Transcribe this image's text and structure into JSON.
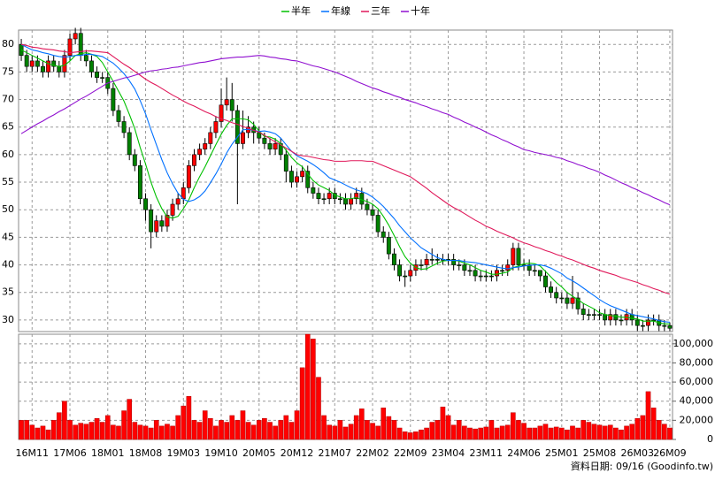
{
  "chart_data": {
    "type": "candlestick",
    "categories": [
      null,
      null,
      "16M11",
      null,
      null,
      null,
      null,
      null,
      null,
      "17M06",
      null,
      null,
      null,
      null,
      null,
      null,
      "18M01",
      null,
      null,
      null,
      null,
      null,
      null,
      "18M08",
      null,
      null,
      null,
      null,
      null,
      null,
      "19M03",
      null,
      null,
      null,
      null,
      null,
      null,
      "19M10",
      null,
      null,
      null,
      null,
      null,
      null,
      "20M05",
      null,
      null,
      null,
      null,
      null,
      null,
      "20M12",
      null,
      null,
      null,
      null,
      null,
      null,
      "21M07",
      null,
      null,
      null,
      null,
      null,
      null,
      "22M02",
      null,
      null,
      null,
      null,
      null,
      null,
      "22M09",
      null,
      null,
      null,
      null,
      null,
      null,
      "23M04",
      null,
      null,
      null,
      null,
      null,
      null,
      "23M11",
      null,
      null,
      null,
      null,
      null,
      null,
      "24M06",
      null,
      null,
      null,
      null,
      null,
      null,
      "25M01",
      null,
      null,
      null,
      null,
      null,
      null,
      "25M08",
      null,
      null,
      null,
      null,
      null,
      null,
      "26M03",
      null,
      null,
      null,
      null,
      null,
      "26M09"
    ],
    "open": [
      80,
      78,
      76,
      77,
      76,
      75,
      77,
      76,
      75,
      78,
      81,
      82,
      78,
      77,
      75,
      74,
      74,
      72,
      68,
      66,
      64,
      60,
      58,
      52,
      50,
      46,
      48,
      47,
      49,
      51,
      52,
      54,
      58,
      60,
      61,
      62,
      64,
      66,
      69,
      70,
      68,
      62,
      64,
      65,
      64,
      63,
      62,
      61,
      62,
      60,
      57,
      55,
      56,
      57,
      54,
      53,
      52,
      52,
      53,
      52,
      52,
      51,
      52,
      53,
      51,
      50,
      49,
      46,
      45,
      42,
      40,
      38,
      38,
      39,
      40,
      40,
      41,
      41,
      41,
      41,
      41,
      40,
      40,
      39,
      39,
      38,
      38,
      38,
      38,
      39,
      39,
      40,
      43,
      40,
      40,
      39,
      39,
      38,
      36,
      35,
      34,
      34,
      33,
      34,
      32,
      31,
      31,
      31,
      31,
      30,
      31,
      30,
      30,
      31,
      30,
      29,
      29,
      30,
      30,
      29,
      29
    ],
    "high": [
      81,
      79,
      78,
      78,
      77,
      78,
      78,
      77,
      79,
      82,
      83,
      83,
      79,
      78,
      76,
      75,
      75,
      73,
      69,
      67,
      65,
      61,
      59,
      53,
      51,
      49,
      49,
      50,
      52,
      53,
      55,
      59,
      61,
      62,
      63,
      65,
      67,
      72,
      74,
      73,
      69,
      68,
      67,
      66,
      65,
      64,
      63,
      63,
      63,
      61,
      58,
      57,
      58,
      58,
      55,
      54,
      53,
      54,
      54,
      53,
      53,
      53,
      54,
      54,
      52,
      51,
      50,
      47,
      46,
      43,
      41,
      39,
      40,
      41,
      41,
      42,
      43,
      42,
      42,
      42,
      42,
      41,
      41,
      40,
      40,
      39,
      39,
      39,
      40,
      40,
      41,
      44,
      44,
      41,
      41,
      40,
      39,
      39,
      37,
      36,
      35,
      35,
      38,
      35,
      33,
      32,
      32,
      32,
      32,
      32,
      32,
      31,
      32,
      32,
      31,
      30,
      31,
      31,
      31,
      30,
      29.5
    ],
    "low": [
      77,
      75,
      75,
      75,
      74,
      74,
      75,
      74,
      74,
      77,
      80,
      77,
      76,
      74,
      73,
      73,
      71,
      67,
      65,
      63,
      59,
      57,
      51,
      48,
      43,
      45,
      46,
      46,
      48,
      50,
      51,
      53,
      57,
      59,
      60,
      61,
      63,
      65,
      68,
      66,
      51,
      61,
      63,
      62,
      62,
      61,
      60,
      60,
      59,
      55,
      54,
      54,
      55,
      53,
      52,
      51,
      51,
      51,
      51,
      51,
      50,
      50,
      51,
      50,
      49,
      48,
      45,
      44,
      41,
      39,
      37,
      36,
      37,
      38,
      39,
      39,
      40,
      40,
      40,
      40,
      39,
      39,
      38,
      38,
      37,
      37,
      37,
      37,
      37,
      38,
      38,
      39,
      39,
      39,
      38,
      38,
      37,
      35,
      34,
      33,
      33,
      32,
      32,
      31,
      30,
      30,
      30,
      30,
      29,
      29,
      29,
      29,
      29,
      29,
      28,
      28,
      28,
      29,
      28,
      28,
      28
    ],
    "close": [
      78,
      76,
      77,
      76,
      75,
      77,
      76,
      75,
      78,
      81,
      82,
      78,
      77,
      75,
      74,
      74,
      72,
      68,
      66,
      64,
      60,
      58,
      52,
      50,
      46,
      48,
      47,
      49,
      51,
      52,
      54,
      58,
      60,
      61,
      62,
      64,
      66,
      69,
      70,
      68,
      62,
      64,
      65,
      64,
      63,
      62,
      61,
      62,
      60,
      57,
      55,
      56,
      57,
      54,
      53,
      52,
      52,
      53,
      52,
      52,
      51,
      52,
      53,
      51,
      50,
      49,
      46,
      45,
      42,
      40,
      38,
      38,
      39,
      40,
      40,
      41,
      41,
      41,
      41,
      41,
      40,
      40,
      39,
      39,
      38,
      38,
      38,
      38,
      39,
      39,
      40,
      43,
      40,
      40,
      39,
      39,
      38,
      36,
      35,
      34,
      34,
      33,
      34,
      32,
      31,
      31,
      31,
      31,
      30,
      31,
      30,
      30,
      31,
      30,
      29,
      29,
      30,
      30,
      29,
      29,
      28.5
    ],
    "up_color": "#ff0000",
    "down_color": "#008000",
    "series": [
      {
        "name": "半年",
        "color": "#00c000",
        "values": [
          79,
          78.5,
          78,
          77.5,
          77,
          76.5,
          76.2,
          76,
          76.2,
          77,
          78,
          78.3,
          78.5,
          78.2,
          77.8,
          76.7,
          75,
          73.3,
          71.5,
          69.7,
          67.3,
          64.7,
          61.3,
          58.3,
          55,
          52.3,
          50.2,
          48.7,
          48.5,
          48.8,
          50.2,
          51.8,
          54,
          56,
          57.8,
          59.8,
          61.8,
          63.7,
          65.3,
          66.5,
          66.5,
          66.5,
          66.3,
          65.5,
          64.3,
          63.3,
          63.2,
          62.8,
          62,
          60.8,
          59.5,
          58.5,
          57.8,
          56.5,
          55.3,
          54.5,
          54,
          53.5,
          52.7,
          52.3,
          52,
          52,
          52.2,
          51.8,
          51.5,
          51,
          50.2,
          48.8,
          47.2,
          45.3,
          43.3,
          41.5,
          40.3,
          39.5,
          39.2,
          39.3,
          39.8,
          40.3,
          40.7,
          40.8,
          40.8,
          40.7,
          40.3,
          40,
          39.5,
          39,
          38.7,
          38.3,
          38.3,
          38.5,
          38.7,
          39.5,
          39.8,
          40.2,
          40.3,
          40.2,
          39.8,
          38.8,
          37.8,
          36.8,
          36,
          35,
          34.3,
          33.7,
          33,
          32.5,
          32,
          31.3,
          31,
          30.8,
          30.7,
          30.5,
          30.5,
          30.3,
          30.2,
          29.8,
          29.8,
          29.8,
          29.5,
          29.3,
          29.3
        ]
      },
      {
        "name": "年線",
        "color": "#0070ff",
        "values": [
          80,
          79.5,
          79,
          78.8,
          78.5,
          78.3,
          78,
          77.8,
          77.7,
          77.8,
          78,
          78,
          78.2,
          78.2,
          78,
          77.8,
          77.2,
          76.6,
          75.7,
          74.7,
          73.4,
          71.9,
          69.8,
          67.4,
          64.5,
          61.8,
          59.1,
          56.7,
          54.7,
          53,
          51.9,
          51.5,
          51.8,
          52.4,
          53.4,
          54.9,
          56.5,
          58.3,
          60.3,
          61.9,
          63.2,
          64.5,
          64.6,
          64.4,
          64.2,
          64.3,
          64.1,
          63.8,
          63,
          61.8,
          60.6,
          59.8,
          59.3,
          58.8,
          58.2,
          57.5,
          56.7,
          55.8,
          55.4,
          55,
          54.5,
          54,
          53.6,
          53.3,
          52.9,
          52.3,
          51.5,
          50.6,
          49.5,
          48.4,
          47.1,
          46,
          44.9,
          44,
          43.1,
          42.5,
          41.9,
          41.3,
          41,
          40.8,
          40.8,
          40.8,
          40.6,
          40.5,
          40.4,
          40.2,
          40,
          39.8,
          39.6,
          39.4,
          39.3,
          39.5,
          39.6,
          39.8,
          39.9,
          40,
          40,
          39.8,
          39.4,
          38.9,
          38.4,
          37.6,
          37.1,
          36.5,
          35.8,
          35.1,
          34.4,
          33.7,
          33.1,
          32.6,
          32.2,
          31.8,
          31.4,
          31,
          30.8,
          30.6,
          30.4,
          30.2,
          29.9,
          29.7,
          29.6
        ]
      },
      {
        "name": "三年",
        "color": "#e0185a",
        "values": [
          80,
          79.8,
          79.5,
          79.4,
          79.2,
          79.1,
          79,
          78.8,
          78.7,
          78.5,
          78.6,
          78.7,
          78.8,
          78.8,
          78.7,
          78.6,
          78.5,
          77.8,
          77.1,
          76.4,
          75.8,
          75.1,
          74.4,
          73.7,
          73.1,
          72.6,
          72,
          71.4,
          70.8,
          70.3,
          69.7,
          69.2,
          68.8,
          68.3,
          67.8,
          67.4,
          66.9,
          66.5,
          66.2,
          65.8,
          65.5,
          65.1,
          64.8,
          64.4,
          64.1,
          63.5,
          62.9,
          62.3,
          61.8,
          61.2,
          60.6,
          60,
          59.8,
          59.7,
          59.5,
          59.3,
          59.1,
          59,
          58.8,
          58.8,
          58.8,
          58.9,
          58.9,
          58.9,
          58.8,
          58.8,
          58.4,
          58,
          57.6,
          57.2,
          56.8,
          56.4,
          56,
          55.3,
          54.6,
          53.9,
          53.1,
          52.4,
          51.7,
          51,
          50.4,
          49.9,
          49.3,
          48.7,
          48.1,
          47.6,
          47,
          46.6,
          46.1,
          45.7,
          45.3,
          44.9,
          44.4,
          44,
          43.7,
          43.3,
          43,
          42.6,
          42.3,
          41.9,
          41.6,
          41.2,
          40.9,
          40.5,
          40.1,
          39.7,
          39.4,
          39,
          38.7,
          38.4,
          38.1,
          37.7,
          37.4,
          37.1,
          36.8,
          36.4,
          36.1,
          35.7,
          35.4,
          35,
          34.7
        ]
      },
      {
        "name": "十年",
        "color": "#9010d0",
        "values": [
          63.8,
          64.4,
          65,
          65.6,
          66.1,
          66.7,
          67.2,
          67.8,
          68.3,
          68.9,
          69.5,
          70.1,
          70.6,
          71.2,
          71.8,
          72.4,
          73,
          73.3,
          73.6,
          73.9,
          74.1,
          74.4,
          74.7,
          75,
          75.2,
          75.3,
          75.5,
          75.6,
          75.8,
          75.9,
          76.1,
          76.3,
          76.5,
          76.7,
          76.8,
          77,
          77.2,
          77.4,
          77.5,
          77.6,
          77.7,
          77.7,
          77.8,
          77.9,
          78,
          77.9,
          77.7,
          77.6,
          77.4,
          77.3,
          77.1,
          77,
          76.7,
          76.4,
          76.1,
          75.9,
          75.6,
          75.3,
          75,
          74.6,
          74.2,
          73.8,
          73.3,
          72.9,
          72.5,
          72.1,
          71.8,
          71.4,
          71.1,
          70.7,
          70.4,
          70,
          69.7,
          69.4,
          69,
          68.7,
          68.3,
          68,
          67.6,
          67.3,
          66.8,
          66.4,
          65.9,
          65.5,
          65,
          64.6,
          64.1,
          63.6,
          63.2,
          62.7,
          62.3,
          61.8,
          61.4,
          60.9,
          60.7,
          60.4,
          60.2,
          60,
          59.8,
          59.5,
          59.3,
          58.9,
          58.6,
          58.2,
          57.9,
          57.5,
          57.2,
          56.8,
          56.3,
          55.9,
          55.4,
          54.9,
          54.5,
          54,
          53.6,
          53.1,
          52.7,
          52.2,
          51.8,
          51.3,
          50.9
        ]
      }
    ],
    "ylim": [
      27.9,
      82.6
    ],
    "yticks": [
      30,
      35,
      40,
      45,
      50,
      55,
      60,
      65,
      70,
      75,
      80
    ],
    "volume": {
      "color": "#ff0000",
      "values": [
        20000,
        20000,
        15000,
        12000,
        14000,
        10000,
        20000,
        28000,
        40000,
        20000,
        15000,
        17000,
        16000,
        18000,
        22000,
        18000,
        25000,
        15000,
        14000,
        30000,
        42000,
        18000,
        15000,
        14000,
        12000,
        20000,
        14000,
        16000,
        14000,
        25000,
        35000,
        45000,
        20000,
        18000,
        30000,
        22000,
        14000,
        20000,
        18000,
        25000,
        20000,
        30000,
        18000,
        15000,
        20000,
        22000,
        18000,
        14000,
        20000,
        25000,
        18000,
        30000,
        75000,
        110000,
        105000,
        65000,
        25000,
        15000,
        14000,
        20000,
        13000,
        16000,
        25000,
        32000,
        20000,
        17000,
        14000,
        33000,
        24000,
        20000,
        12000,
        8000,
        7000,
        8000,
        10000,
        12000,
        18000,
        20000,
        34000,
        25000,
        15000,
        20000,
        14000,
        12000,
        11000,
        12000,
        13000,
        20000,
        12000,
        14000,
        15000,
        28000,
        20000,
        17000,
        12000,
        12000,
        14000,
        16000,
        12000,
        13000,
        12000,
        10000,
        14000,
        12000,
        20000,
        18000,
        16000,
        15000,
        14000,
        15000,
        12000,
        10000,
        14000,
        16000,
        22000,
        25000,
        50000,
        33000,
        20000,
        16000,
        12000
      ],
      "ylim": [
        0,
        110000
      ],
      "yticks": [
        0,
        {
          "value": 20000,
          "label": "20,000"
        },
        {
          "value": 40000,
          "label": "40,000"
        },
        {
          "value": 60000,
          "label": "60,000"
        },
        {
          "value": 80000,
          "label": "80,000"
        },
        {
          "value": 100000,
          "label": "100,000"
        }
      ]
    },
    "grid": true,
    "legend": "top",
    "source": "資料日期: 09/16 (Goodinfo.tw)"
  }
}
